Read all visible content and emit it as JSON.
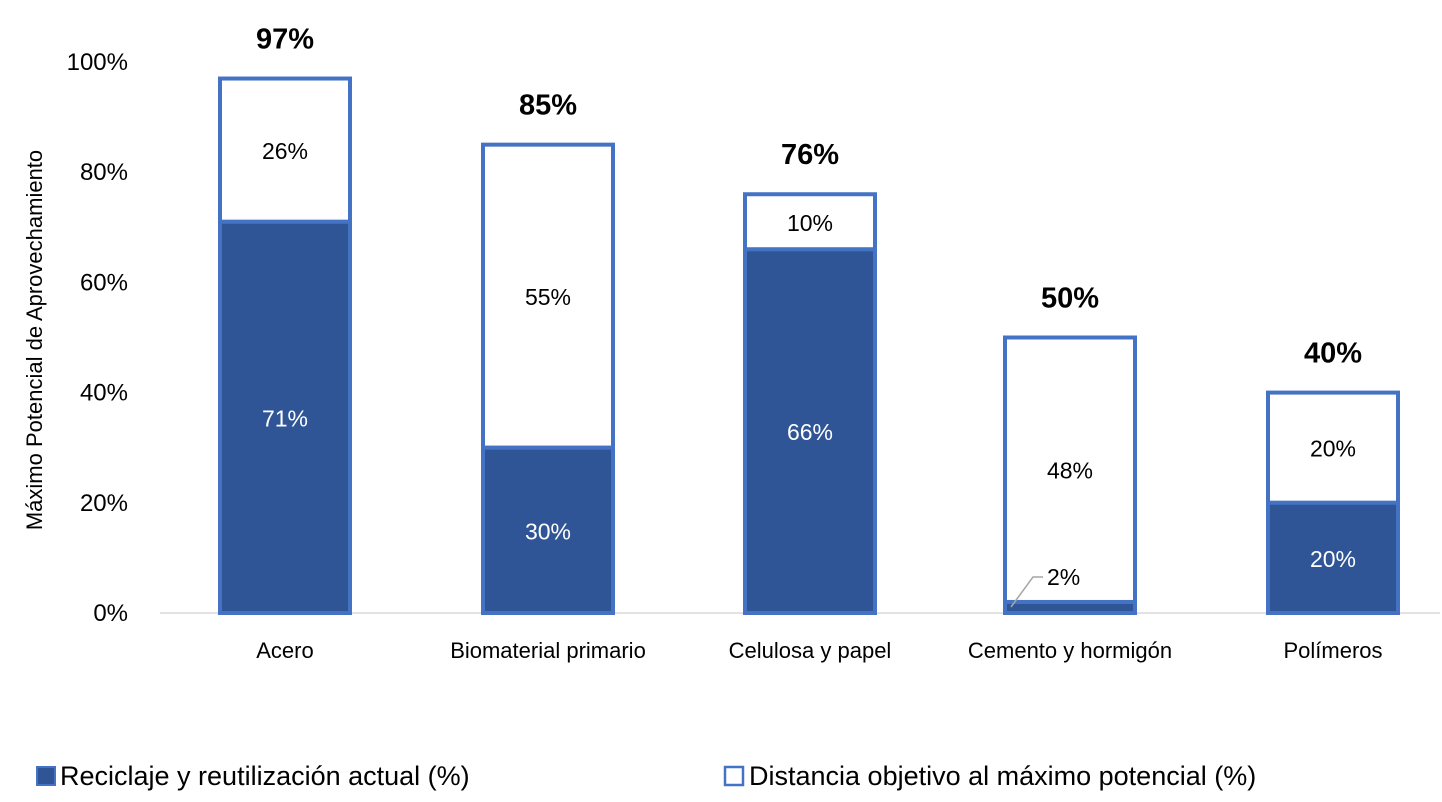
{
  "chart_data": {
    "type": "bar",
    "stacked": true,
    "categories": [
      "Acero",
      "Biomaterial primario",
      "Celulosa y papel",
      "Cemento y hormigón",
      "Polímeros"
    ],
    "series": [
      {
        "name": "Reciclaje y reutilización actual (%)",
        "values": [
          71,
          30,
          66,
          2,
          20
        ],
        "labels": [
          "71%",
          "30%",
          "66%",
          "2%",
          "20%"
        ],
        "color": "#2f5597"
      },
      {
        "name": "Distancia objetivo al máximo potencial (%)",
        "values": [
          26,
          55,
          10,
          48,
          20
        ],
        "labels": [
          "26%",
          "55%",
          "10%",
          "48%",
          "20%"
        ],
        "color": "#ffffff",
        "border_color": "#4472c4"
      }
    ],
    "totals": [
      97,
      85,
      76,
      50,
      40
    ],
    "total_labels": [
      "97%",
      "85%",
      "76%",
      "50%",
      "40%"
    ],
    "ylabel": "Máximo Potencial de Aprovechamiento",
    "ylim": [
      0,
      100
    ],
    "yticks": [
      0,
      20,
      40,
      60,
      80,
      100
    ],
    "ytick_labels": [
      "0%",
      "20%",
      "40%",
      "60%",
      "80%",
      "100%"
    ],
    "grid": false,
    "legend_position": "bottom"
  }
}
